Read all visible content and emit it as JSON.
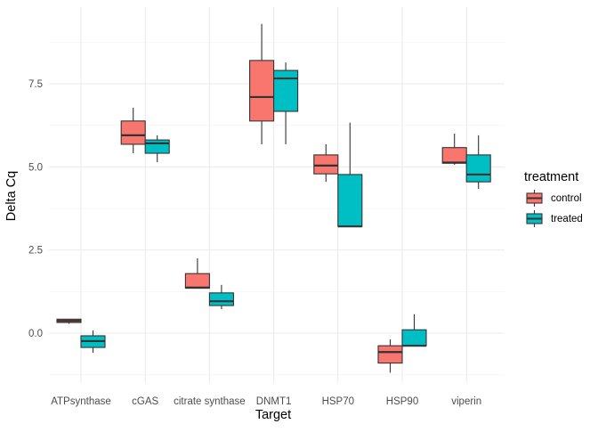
{
  "chart_data": {
    "type": "boxplot",
    "xlabel": "Target",
    "ylabel": "Delta Cq",
    "ylim": [
      -1.5,
      9.8
    ],
    "yticks": [
      0.0,
      2.5,
      5.0,
      7.5
    ],
    "ytick_labels": [
      "0.0",
      "2.5",
      "5.0",
      "7.5"
    ],
    "grid": true,
    "legend": {
      "title": "treatment",
      "position": "right"
    },
    "categories": [
      "ATPsynthase",
      "cGAS",
      "citrate synthase",
      "DNMT1",
      "HSP70",
      "HSP90",
      "viperin"
    ],
    "series": [
      {
        "name": "control",
        "color": "#F8766D",
        "boxes": [
          {
            "lower": 0.28,
            "q1": 0.32,
            "median": 0.37,
            "q3": 0.42,
            "upper": 0.42
          },
          {
            "lower": 5.41,
            "q1": 5.68,
            "median": 5.95,
            "q3": 6.38,
            "upper": 6.78
          },
          {
            "lower": 1.35,
            "q1": 1.35,
            "median": 1.37,
            "q3": 1.79,
            "upper": 2.25
          },
          {
            "lower": 5.68,
            "q1": 6.38,
            "median": 7.1,
            "q3": 8.2,
            "upper": 9.3
          },
          {
            "lower": 4.55,
            "q1": 4.79,
            "median": 5.04,
            "q3": 5.36,
            "upper": 5.68
          },
          {
            "lower": -1.19,
            "q1": -0.9,
            "median": -0.57,
            "q3": -0.38,
            "upper": -0.19
          },
          {
            "lower": 5.06,
            "q1": 5.11,
            "median": 5.13,
            "q3": 5.58,
            "upper": 6.0
          }
        ]
      },
      {
        "name": "treated",
        "color": "#00BFC4",
        "boxes": [
          {
            "lower": -0.59,
            "q1": -0.43,
            "median": -0.24,
            "q3": -0.08,
            "upper": 0.08
          },
          {
            "lower": 5.14,
            "q1": 5.41,
            "median": 5.71,
            "q3": 5.81,
            "upper": 5.95
          },
          {
            "lower": 0.72,
            "q1": 0.83,
            "median": 0.96,
            "q3": 1.21,
            "upper": 1.45
          },
          {
            "lower": 5.68,
            "q1": 6.67,
            "median": 7.66,
            "q3": 7.9,
            "upper": 8.14
          },
          {
            "lower": 3.21,
            "q1": 3.21,
            "median": 3.21,
            "q3": 4.77,
            "upper": 6.33
          },
          {
            "lower": -0.38,
            "q1": -0.38,
            "median": -0.38,
            "q3": 0.1,
            "upper": 0.57
          },
          {
            "lower": 4.34,
            "q1": 4.55,
            "median": 4.77,
            "q3": 5.36,
            "upper": 5.95
          }
        ]
      }
    ]
  }
}
